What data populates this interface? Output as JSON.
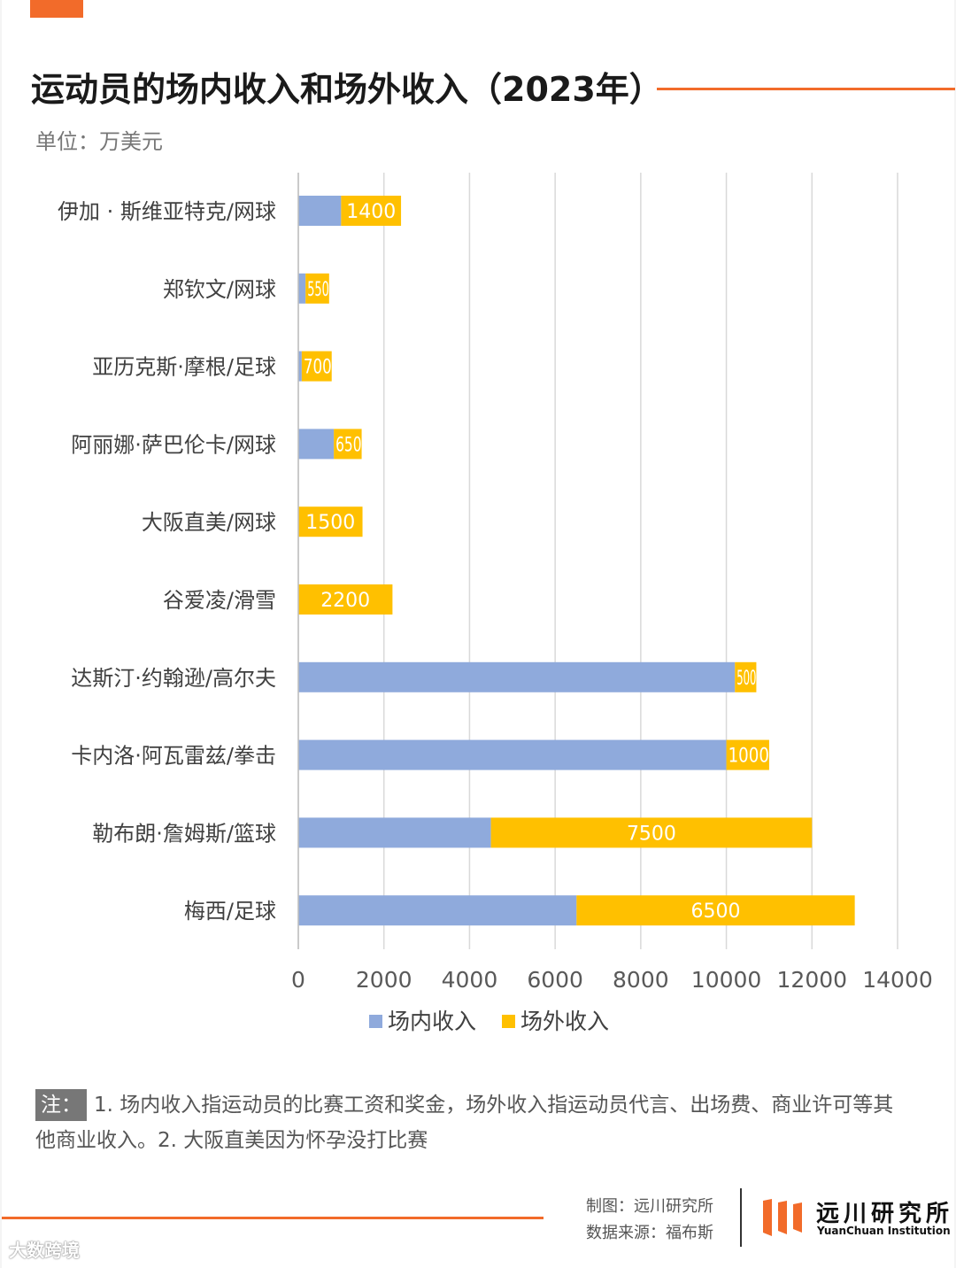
{
  "header": {
    "title": "运动员的场内收入和场外收入（2023年）",
    "unit": "单位：万美元"
  },
  "colors": {
    "accent": "#f26b2a",
    "on_field": "#8faadc",
    "off_field": "#ffc000",
    "grid": "#d9d9d9",
    "logo_orange": "#f26b2a"
  },
  "chart_data": {
    "type": "bar",
    "orientation": "horizontal",
    "stacked": true,
    "categories": [
      "伊加 · 斯维亚特克/网球",
      "郑钦文/网球",
      "亚历克斯·摩根/足球",
      "阿丽娜·萨巴伦卡/网球",
      "大阪直美/网球",
      "谷爱凌/滑雪",
      "达斯汀·约翰逊/高尔夫",
      "卡内洛·阿瓦雷兹/拳击",
      "勒布朗·詹姆斯/篮球",
      "梅西/足球"
    ],
    "series": [
      {
        "name": "场内收入",
        "values": [
          1000,
          170,
          80,
          830,
          0,
          0,
          10200,
          10000,
          4500,
          6500
        ]
      },
      {
        "name": "场外收入",
        "values": [
          1400,
          550,
          700,
          650,
          1500,
          2200,
          500,
          1000,
          7500,
          6500
        ]
      }
    ],
    "data_labels_series": "场外收入",
    "xlim": [
      0,
      14000
    ],
    "xticks": [
      0,
      2000,
      4000,
      6000,
      8000,
      10000,
      12000,
      14000
    ],
    "grid": true,
    "legend_position": "bottom"
  },
  "note": {
    "tag": "注：",
    "text": "1. 场内收入指运动员的比赛工资和奖金，场外收入指运动员代言、出场费、商业许可等其他商业收入。2. 大阪直美因为怀孕没打比赛"
  },
  "footer": {
    "made_by": "制图：远川研究所",
    "source": "数据来源：福布斯",
    "logo_cn": "远川研究所",
    "logo_en": "YuanChuan  Institution",
    "watermark": "大数跨境"
  }
}
